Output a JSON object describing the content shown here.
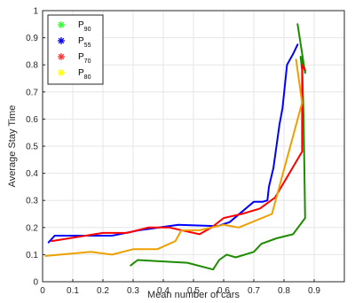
{
  "chart_data": {
    "type": "line",
    "title": "",
    "xlabel": "Mean number of cars",
    "ylabel": "Average Stay Time",
    "xlim": [
      0,
      1
    ],
    "ylim": [
      0,
      1
    ],
    "xticks": [
      "0",
      "0.1",
      "0.2",
      "0.3",
      "0.4",
      "0.5",
      "0.6",
      "0.7",
      "0.8",
      "0.9"
    ],
    "yticks": [
      "0",
      "0.1",
      "0.2",
      "0.3",
      "0.4",
      "0.5",
      "0.6",
      "0.7",
      "0.8",
      "0.9",
      "1"
    ],
    "grid": true,
    "legend_position": "top-left",
    "series": [
      {
        "name": "P90",
        "label_main": "P",
        "label_sub": "90",
        "color": "#1e8c00",
        "marker_color": "#33ff33",
        "x": [
          0.292,
          0.315,
          0.48,
          0.565,
          0.585,
          0.61,
          0.64,
          0.7,
          0.725,
          0.775,
          0.83,
          0.87,
          0.865,
          0.86,
          0.86,
          0.855,
          0.87,
          0.87,
          0.845
        ],
        "y": [
          0.06,
          0.08,
          0.07,
          0.045,
          0.08,
          0.1,
          0.09,
          0.11,
          0.14,
          0.16,
          0.175,
          0.235,
          0.6,
          0.8,
          0.78,
          0.83,
          0.78,
          0.77,
          0.95
        ]
      },
      {
        "name": "P55",
        "label_main": "P",
        "label_sub": "55",
        "color": "#0000ff",
        "marker_color": "#0000ff",
        "x": [
          0.02,
          0.04,
          0.23,
          0.32,
          0.45,
          0.58,
          0.62,
          0.7,
          0.73,
          0.745,
          0.75,
          0.765,
          0.785,
          0.795,
          0.81,
          0.83,
          0.845
        ],
        "y": [
          0.145,
          0.17,
          0.17,
          0.19,
          0.21,
          0.205,
          0.22,
          0.295,
          0.295,
          0.3,
          0.35,
          0.42,
          0.58,
          0.64,
          0.8,
          0.84,
          0.875
        ]
      },
      {
        "name": "P70",
        "label_main": "P",
        "label_sub": "70",
        "color": "#ff0000",
        "marker_color": "#ff3333",
        "x": [
          0.03,
          0.2,
          0.28,
          0.35,
          0.42,
          0.52,
          0.56,
          0.6,
          0.66,
          0.72,
          0.77,
          0.86,
          0.86,
          0.86,
          0.87
        ],
        "y": [
          0.15,
          0.18,
          0.18,
          0.2,
          0.2,
          0.175,
          0.2,
          0.235,
          0.25,
          0.27,
          0.31,
          0.48,
          0.65,
          0.8,
          0.78
        ]
      },
      {
        "name": "P80",
        "label_main": "P",
        "label_sub": "80",
        "color": "#eda000",
        "marker_color": "#ffff00",
        "x": [
          0.01,
          0.16,
          0.23,
          0.3,
          0.38,
          0.44,
          0.46,
          0.52,
          0.6,
          0.65,
          0.76,
          0.86,
          0.84
        ],
        "y": [
          0.095,
          0.11,
          0.1,
          0.12,
          0.12,
          0.15,
          0.19,
          0.19,
          0.21,
          0.2,
          0.25,
          0.66,
          0.82
        ]
      }
    ]
  }
}
